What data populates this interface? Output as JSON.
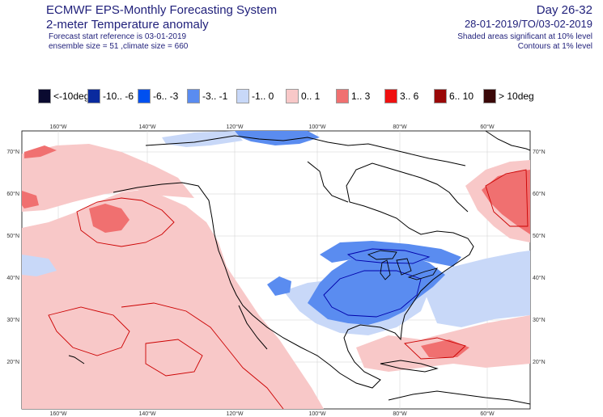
{
  "header": {
    "system": "ECMWF EPS-Monthly Forecasting System",
    "parameter": "2-meter Temperature anomaly",
    "forecast_start": "Forecast start reference is 03-01-2019",
    "ensemble": "ensemble size = 51  ,climate size = 660",
    "day_range": "Day 26-32",
    "valid_period": "28-01-2019/TO/03-02-2019",
    "shaded_note": "Shaded areas significant at 10% level",
    "contour_note": "Contours at 1% level"
  },
  "legend": [
    {
      "label": "<-10deg",
      "color": "#0a0a30"
    },
    {
      "label": "-10.. -6",
      "color": "#0a2a9e"
    },
    {
      "label": "-6.. -3",
      "color": "#0050f0"
    },
    {
      "label": "-3.. -1",
      "color": "#5a8cf0"
    },
    {
      "label": "-1.. 0",
      "color": "#c8d8f8"
    },
    {
      "label": "0.. 1",
      "color": "#f8c8c8"
    },
    {
      "label": "1.. 3",
      "color": "#f07070"
    },
    {
      "label": "3.. 6",
      "color": "#f01010"
    },
    {
      "label": "6.. 10",
      "color": "#9a0808"
    },
    {
      "label": "> 10deg",
      "color": "#3a0808"
    }
  ],
  "map": {
    "lon_labels": [
      "160°W",
      "140°W",
      "120°W",
      "100°W",
      "80°W",
      "60°W"
    ],
    "lat_labels": [
      "70°N",
      "60°N",
      "50°N",
      "40°N",
      "30°N",
      "20°N"
    ],
    "colors": {
      "contour_red": "#cc0000",
      "contour_blue": "#0000aa",
      "coast": "#000000",
      "grid": "#cccccc"
    }
  }
}
